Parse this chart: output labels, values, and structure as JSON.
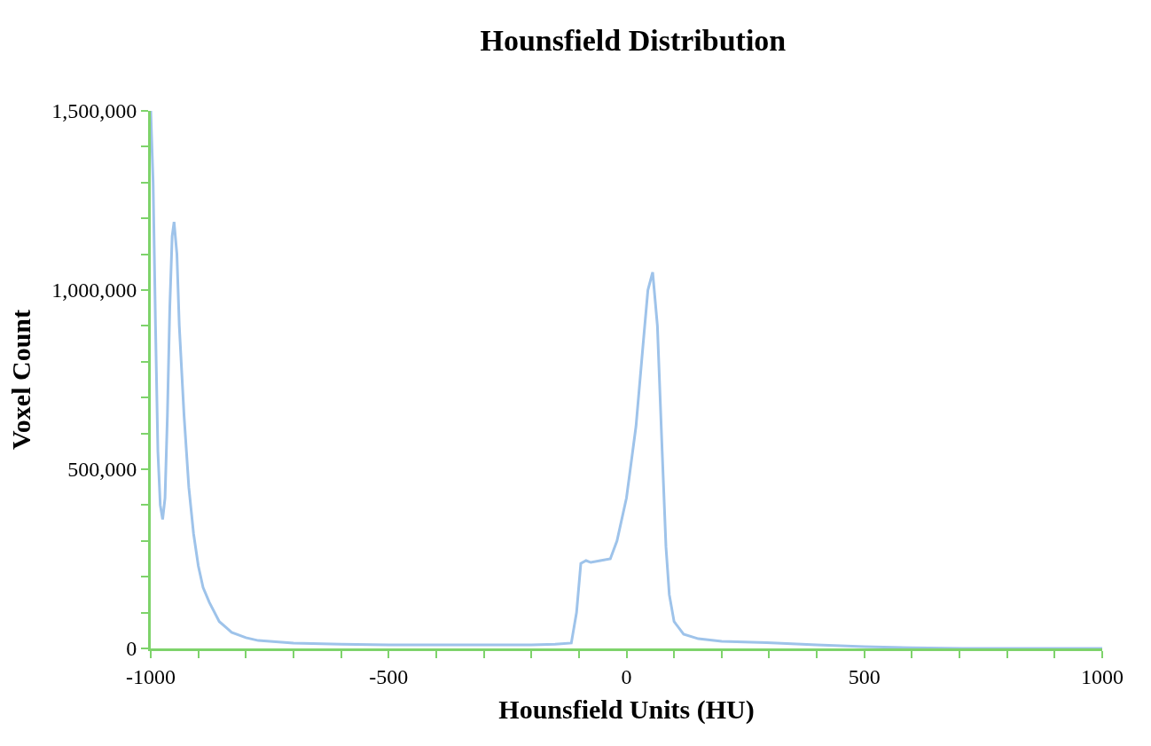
{
  "chart_data": {
    "type": "line",
    "title": "Hounsfield Distribution",
    "xlabel": "Hounsfield Units (HU)",
    "ylabel": "Voxel Count",
    "series": [
      {
        "color": "#9ec3ea",
        "x": [
          -1000,
          -995,
          -990,
          -985,
          -980,
          -975,
          -970,
          -965,
          -960,
          -955,
          -951,
          -945,
          -940,
          -930,
          -920,
          -910,
          -900,
          -890,
          -877,
          -856,
          -830,
          -800,
          -774,
          -700,
          -600,
          -500,
          -400,
          -300,
          -200,
          -150,
          -116,
          -105,
          -96,
          -85,
          -75,
          -55,
          -34,
          -20,
          0,
          20,
          35,
          45,
          55,
          65,
          75,
          83,
          90,
          100,
          120,
          151,
          200,
          295,
          400,
          500,
          600,
          706,
          800,
          900,
          1000
        ],
        "values": [
          1500000,
          1300000,
          900000,
          550000,
          400000,
          360000,
          420000,
          650000,
          950000,
          1150000,
          1190000,
          1100000,
          900000,
          650000,
          450000,
          320000,
          230000,
          170000,
          129000,
          75000,
          45000,
          30000,
          22000,
          15000,
          12000,
          10000,
          10000,
          10000,
          10000,
          12000,
          15000,
          100000,
          237000,
          245000,
          240000,
          245000,
          250000,
          300000,
          420000,
          620000,
          850000,
          1000000,
          1050000,
          900000,
          550000,
          283000,
          150000,
          75000,
          40000,
          27000,
          20000,
          16000,
          10000,
          5000,
          2000,
          0,
          0,
          0,
          0
        ]
      }
    ],
    "xlim": [
      -1000,
      1000
    ],
    "xticks": [
      -1000,
      {
        "value": -900,
        "label": null
      },
      {
        "value": -800,
        "label": null
      },
      {
        "value": -700,
        "label": null
      },
      {
        "value": -600,
        "label": null
      },
      -500,
      {
        "value": -400,
        "label": null
      },
      {
        "value": -300,
        "label": null
      },
      {
        "value": -200,
        "label": null
      },
      {
        "value": -100,
        "label": null
      },
      0,
      {
        "value": 100,
        "label": null
      },
      {
        "value": 200,
        "label": null
      },
      {
        "value": 300,
        "label": null
      },
      {
        "value": 400,
        "label": null
      },
      500,
      {
        "value": 600,
        "label": null
      },
      {
        "value": 700,
        "label": null
      },
      {
        "value": 800,
        "label": null
      },
      {
        "value": 900,
        "label": null
      },
      1000
    ],
    "ylim": [
      0,
      1500000
    ],
    "yticks": [
      0,
      {
        "value": 100000,
        "label": null
      },
      {
        "value": 200000,
        "label": null
      },
      {
        "value": 300000,
        "label": null
      },
      {
        "value": 400000,
        "label": null
      },
      {
        "value": 500000,
        "label": "500,000"
      },
      {
        "value": 600000,
        "label": null
      },
      {
        "value": 700000,
        "label": null
      },
      {
        "value": 800000,
        "label": null
      },
      {
        "value": 900000,
        "label": null
      },
      {
        "value": 1000000,
        "label": "1,000,000"
      },
      {
        "value": 1100000,
        "label": null
      },
      {
        "value": 1200000,
        "label": null
      },
      {
        "value": 1300000,
        "label": null
      },
      {
        "value": 1400000,
        "label": null
      },
      {
        "value": 1500000,
        "label": "1,500,000"
      }
    ],
    "marker": "none",
    "line_style": "solid"
  }
}
